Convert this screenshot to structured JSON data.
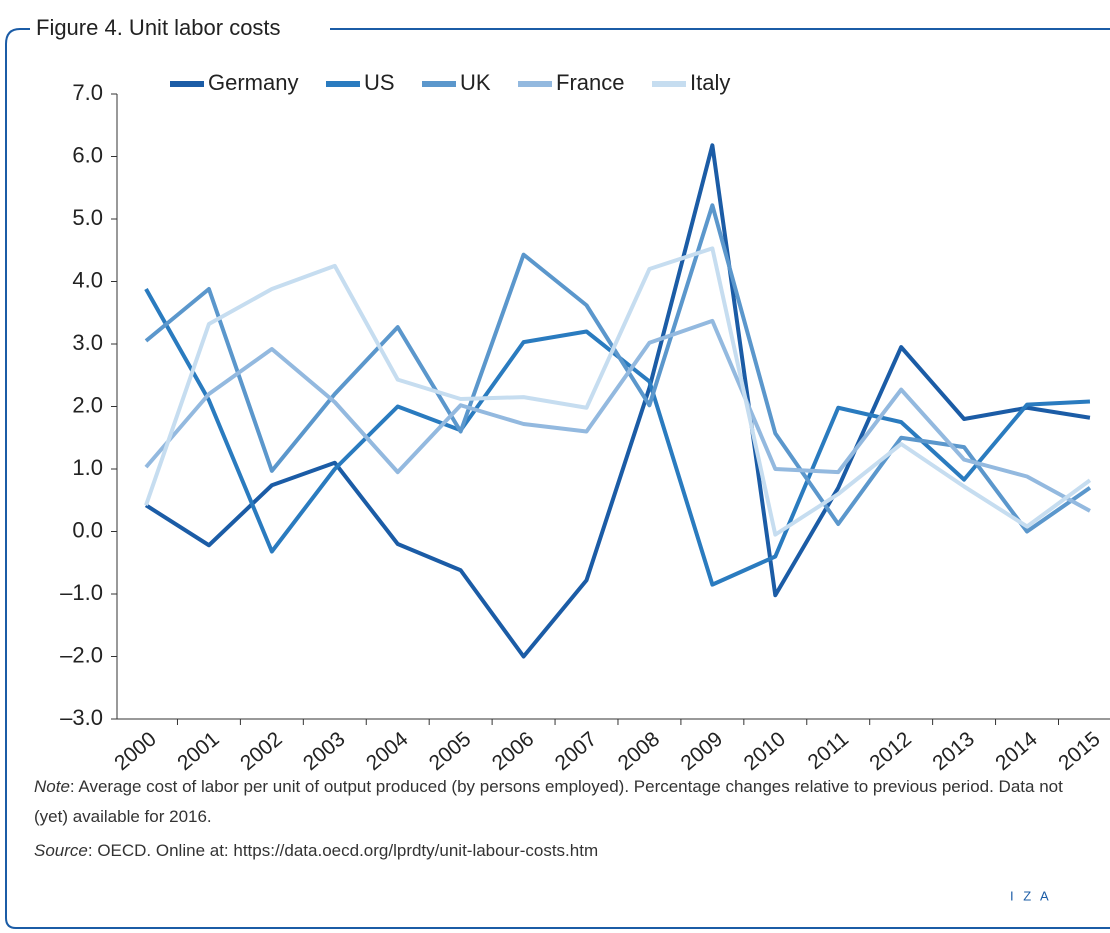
{
  "chart_data": {
    "type": "line",
    "title": "Figure 4. Unit labor costs",
    "categories": [
      "2000",
      "2001",
      "2002",
      "2003",
      "2004",
      "2005",
      "2006",
      "2007",
      "2008",
      "2009",
      "2010",
      "2011",
      "2012",
      "2013",
      "2014",
      "2015"
    ],
    "series": [
      {
        "name": "Germany",
        "color": "#1b5ca6",
        "values": [
          0.42,
          -0.22,
          0.74,
          1.1,
          -0.2,
          -0.62,
          -2.0,
          -0.78,
          2.3,
          6.18,
          -1.02,
          0.7,
          2.95,
          1.8,
          1.98,
          1.82
        ]
      },
      {
        "name": "US",
        "color": "#2a7bbf",
        "values": [
          3.88,
          2.1,
          -0.32,
          1.0,
          2.0,
          1.62,
          3.03,
          3.2,
          2.4,
          -0.85,
          -0.4,
          1.98,
          1.75,
          0.83,
          2.03,
          2.08
        ]
      },
      {
        "name": "UK",
        "color": "#5b97cc",
        "values": [
          3.05,
          3.88,
          0.97,
          2.2,
          3.27,
          1.6,
          4.43,
          3.62,
          2.02,
          5.22,
          1.57,
          0.12,
          1.5,
          1.35,
          0.0,
          0.7
        ]
      },
      {
        "name": "France",
        "color": "#93b9df",
        "values": [
          1.03,
          2.2,
          2.92,
          2.07,
          0.95,
          2.02,
          1.72,
          1.6,
          3.02,
          3.37,
          1.0,
          0.95,
          2.27,
          1.15,
          0.88,
          0.33
        ]
      },
      {
        "name": "Italy",
        "color": "#c6ddf0",
        "values": [
          0.42,
          3.32,
          3.88,
          4.25,
          2.43,
          2.12,
          2.15,
          1.98,
          4.2,
          4.53,
          -0.05,
          0.6,
          1.4,
          0.72,
          0.08,
          0.82
        ]
      }
    ],
    "ylim": [
      -3,
      7
    ],
    "yticks": [
      {
        "value": -3,
        "label": "–3.0"
      },
      {
        "value": -2,
        "label": "–2.0"
      },
      {
        "value": -1,
        "label": "–1.0"
      },
      {
        "value": 0,
        "label": "0.0"
      },
      {
        "value": 1,
        "label": "1.0"
      },
      {
        "value": 2,
        "label": "2.0"
      },
      {
        "value": 3,
        "label": "3.0"
      },
      {
        "value": 4,
        "label": "4.0"
      },
      {
        "value": 5,
        "label": "5.0"
      },
      {
        "value": 6,
        "label": "6.0"
      },
      {
        "value": 7,
        "label": "7.0"
      }
    ],
    "grid": false,
    "legend": "top",
    "note_label": "Note",
    "note_text": ": Average cost of labor per unit of output produced (by persons employed). Percentage changes relative to previous period. Data not (yet) available for 2016.",
    "source_label": "Source",
    "source_text": ": OECD. Online at: https://data.oecd.org/lprdty/unit-labour-costs.htm",
    "logo": "I Z A"
  }
}
